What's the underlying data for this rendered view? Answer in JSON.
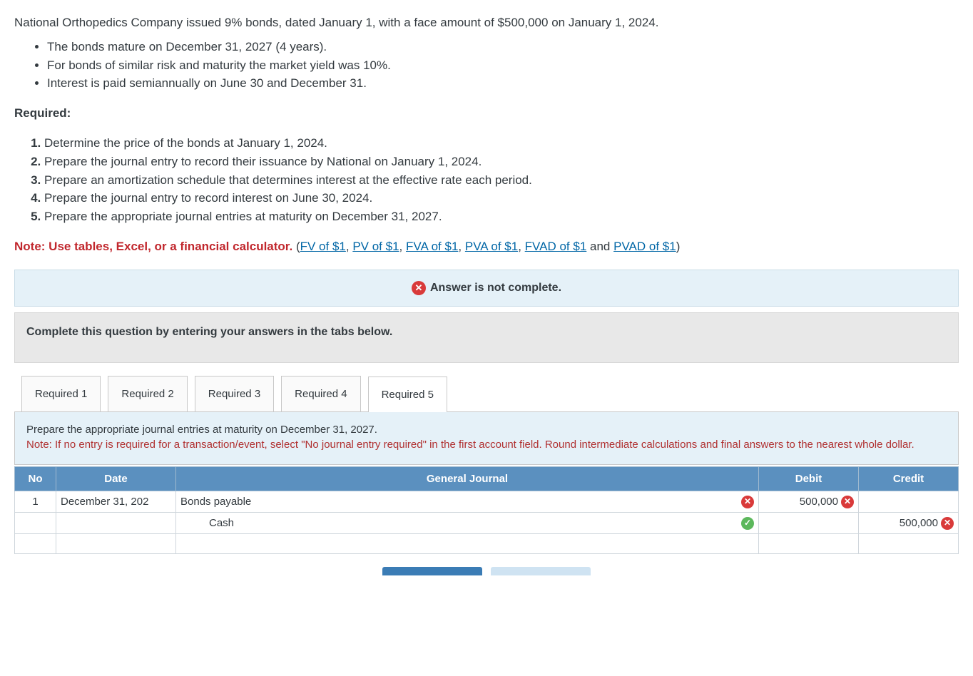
{
  "intro": "National Orthopedics Company issued 9% bonds, dated January 1, with a face amount of $500,000 on January 1, 2024.",
  "bullets": [
    "The bonds mature on December 31, 2027 (4 years).",
    "For bonds of similar risk and maturity the market yield was 10%.",
    "Interest is paid semiannually on June 30 and December 31."
  ],
  "required_heading": "Required:",
  "requirements": [
    "Determine the price of the bonds at January 1, 2024.",
    "Prepare the journal entry to record their issuance by National on January 1, 2024.",
    "Prepare an amortization schedule that determines interest at the effective rate each period.",
    "Prepare the journal entry to record interest on June 30, 2024.",
    "Prepare the appropriate journal entries at maturity on December 31, 2027."
  ],
  "note": {
    "prefix": "Note: Use tables, Excel, or a financial calculator. ",
    "paren_open": "(",
    "links": [
      "FV of $1",
      "PV of $1",
      "FVA of $1",
      "PVA of $1",
      "FVAD of $1"
    ],
    "sep": ", ",
    "and": " and ",
    "last_link": "PVAD of $1",
    "paren_close": ")"
  },
  "alert": {
    "icon": "✕",
    "text": "Answer is not complete."
  },
  "instruct": "Complete this question by entering your answers in the tabs below.",
  "tabs": [
    "Required 1",
    "Required 2",
    "Required 3",
    "Required 4",
    "Required 5"
  ],
  "active_tab": 4,
  "tab_body": {
    "line1": "Prepare the appropriate journal entries at maturity on December 31, 2027.",
    "line2": "Note: If no entry is required for a transaction/event, select \"No journal entry required\" in the first account field. Round intermediate calculations and final answers to the nearest whole dollar."
  },
  "table": {
    "headers": {
      "no": "No",
      "date": "Date",
      "gj": "General Journal",
      "debit": "Debit",
      "credit": "Credit"
    },
    "rows": [
      {
        "no": "1",
        "date": "December 31, 202",
        "account": "Bonds payable",
        "status": "wrong",
        "debit": "500,000",
        "debit_status": "wrong",
        "credit": "",
        "credit_status": ""
      },
      {
        "no": "",
        "date": "",
        "account": "Cash",
        "indent": true,
        "status": "correct",
        "debit": "",
        "debit_status": "",
        "credit": "500,000",
        "credit_status": "wrong"
      },
      {
        "no": "",
        "date": "",
        "account": "",
        "status": "",
        "debit": "",
        "debit_status": "",
        "credit": "",
        "credit_status": ""
      }
    ]
  },
  "icons": {
    "wrong": "✕",
    "correct": "✓"
  },
  "colors": {
    "link": "#0066a6",
    "note_red": "#c1272d",
    "alert_bg": "#e5f1f8",
    "instruct_bg": "#e8e8e8",
    "tab_header_bg": "#5b90bf",
    "red_icon": "#d93a3a",
    "green_icon": "#5cb85c"
  }
}
